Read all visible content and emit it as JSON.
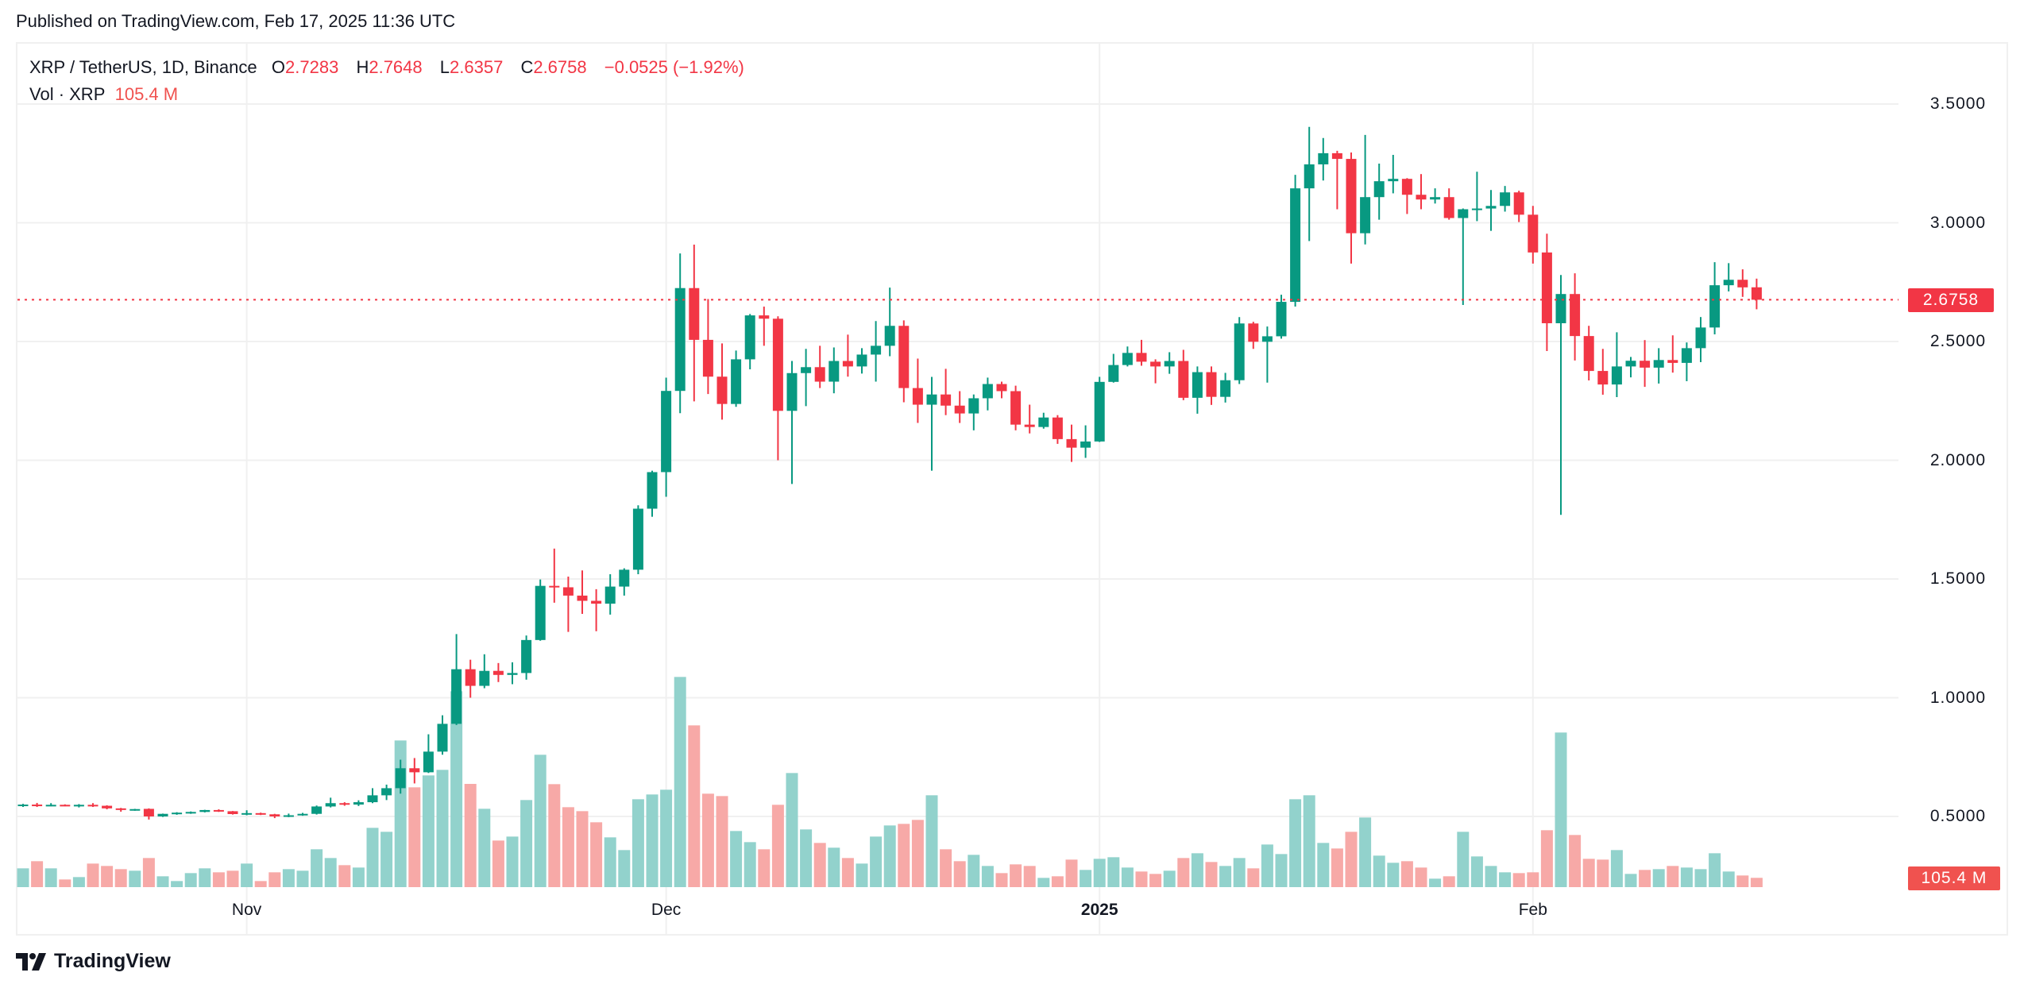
{
  "header": {
    "published": "Published on TradingView.com, Feb 17, 2025 11:36 UTC"
  },
  "legend": {
    "symbol": "XRP / TetherUS, 1D, Binance",
    "o_label": "O",
    "o": "2.7283",
    "h_label": "H",
    "h": "2.7648",
    "l_label": "L",
    "l": "2.6357",
    "c_label": "C",
    "c": "2.6758",
    "change": "−0.0525 (−1.92%)",
    "vol_label": "Vol · XRP",
    "vol": "105.4 M"
  },
  "price_tag": "2.6758",
  "vol_tag": "105.4 M",
  "footer": {
    "brand": "TradingView",
    "logo_icon": "tradingview-logo-icon"
  },
  "colors": {
    "up": "#089981",
    "down": "#f23645",
    "vol_up": "#92d2cc",
    "vol_down": "#f7a9a7",
    "last_price_line": "#f23645",
    "grid": "#f0f0f0"
  },
  "chart_data": {
    "type": "candlestick",
    "title": "XRP / TetherUS, 1D, Binance",
    "interval": "1D",
    "ylim": [
      0.38,
      3.67
    ],
    "yticks": [
      "3.5000",
      "3.0000",
      "2.5000",
      "2.0000",
      "1.5000",
      "1.0000",
      "0.5000"
    ],
    "ytick_values": [
      3.5,
      3.0,
      2.5,
      2.0,
      1.5,
      1.0,
      0.5
    ],
    "xticks": [
      {
        "label": "Nov",
        "date": "2024-11-01",
        "bold": false
      },
      {
        "label": "Dec",
        "date": "2024-12-01",
        "bold": false
      },
      {
        "label": "2025",
        "date": "2025-01-01",
        "bold": true
      },
      {
        "label": "Feb",
        "date": "2025-02-01",
        "bold": false
      }
    ],
    "grid": true,
    "last_price": 2.6758,
    "volume_unit": "M",
    "columns": [
      "date",
      "open",
      "high",
      "low",
      "close",
      "volume"
    ],
    "candles": [
      [
        "2024-10-16",
        0.547,
        0.553,
        0.54,
        0.55,
        213
      ],
      [
        "2024-10-17",
        0.55,
        0.557,
        0.54,
        0.547,
        294
      ],
      [
        "2024-10-18",
        0.547,
        0.556,
        0.543,
        0.549,
        213
      ],
      [
        "2024-10-19",
        0.549,
        0.551,
        0.543,
        0.546,
        87
      ],
      [
        "2024-10-20",
        0.546,
        0.552,
        0.538,
        0.549,
        114
      ],
      [
        "2024-10-21",
        0.549,
        0.556,
        0.54,
        0.545,
        267
      ],
      [
        "2024-10-22",
        0.545,
        0.547,
        0.53,
        0.534,
        240
      ],
      [
        "2024-10-23",
        0.534,
        0.536,
        0.52,
        0.528,
        204
      ],
      [
        "2024-10-24",
        0.528,
        0.532,
        0.524,
        0.531,
        186
      ],
      [
        "2024-10-25",
        0.532,
        0.534,
        0.487,
        0.5,
        330
      ],
      [
        "2024-10-26",
        0.5,
        0.512,
        0.498,
        0.511,
        123
      ],
      [
        "2024-10-27",
        0.511,
        0.518,
        0.507,
        0.516,
        69
      ],
      [
        "2024-10-28",
        0.516,
        0.521,
        0.511,
        0.519,
        159
      ],
      [
        "2024-10-29",
        0.519,
        0.528,
        0.517,
        0.527,
        213
      ],
      [
        "2024-10-30",
        0.527,
        0.53,
        0.519,
        0.522,
        168
      ],
      [
        "2024-10-31",
        0.522,
        0.523,
        0.508,
        0.51,
        186
      ],
      [
        "2024-11-01",
        0.51,
        0.526,
        0.505,
        0.514,
        267
      ],
      [
        "2024-11-02",
        0.514,
        0.516,
        0.506,
        0.509,
        69
      ],
      [
        "2024-11-03",
        0.509,
        0.511,
        0.493,
        0.5,
        168
      ],
      [
        "2024-11-04",
        0.5,
        0.512,
        0.497,
        0.505,
        204
      ],
      [
        "2024-11-05",
        0.505,
        0.515,
        0.503,
        0.511,
        186
      ],
      [
        "2024-11-06",
        0.511,
        0.546,
        0.508,
        0.542,
        429
      ],
      [
        "2024-11-07",
        0.542,
        0.579,
        0.538,
        0.556,
        330
      ],
      [
        "2024-11-08",
        0.556,
        0.56,
        0.545,
        0.55,
        249
      ],
      [
        "2024-11-09",
        0.55,
        0.568,
        0.544,
        0.56,
        222
      ],
      [
        "2024-11-10",
        0.56,
        0.619,
        0.556,
        0.589,
        672
      ],
      [
        "2024-11-11",
        0.589,
        0.634,
        0.569,
        0.619,
        627
      ],
      [
        "2024-11-12",
        0.619,
        0.739,
        0.596,
        0.703,
        1662
      ],
      [
        "2024-11-13",
        0.703,
        0.746,
        0.639,
        0.686,
        1131
      ],
      [
        "2024-11-14",
        0.686,
        0.846,
        0.683,
        0.773,
        1266
      ],
      [
        "2024-11-15",
        0.773,
        0.926,
        0.76,
        0.89,
        1329
      ],
      [
        "2024-11-16",
        0.89,
        1.268,
        0.885,
        1.12,
        2220
      ],
      [
        "2024-11-17",
        1.12,
        1.16,
        1.0,
        1.05,
        1170
      ],
      [
        "2024-11-18",
        1.05,
        1.183,
        1.04,
        1.113,
        888
      ],
      [
        "2024-11-19",
        1.113,
        1.146,
        1.066,
        1.096,
        528
      ],
      [
        "2024-11-20",
        1.096,
        1.149,
        1.057,
        1.104,
        573
      ],
      [
        "2024-11-21",
        1.104,
        1.262,
        1.076,
        1.243,
        987
      ],
      [
        "2024-11-22",
        1.243,
        1.498,
        1.24,
        1.471,
        1500
      ],
      [
        "2024-11-23",
        1.471,
        1.628,
        1.4,
        1.465,
        1167
      ],
      [
        "2024-11-24",
        1.465,
        1.51,
        1.277,
        1.43,
        906
      ],
      [
        "2024-11-25",
        1.43,
        1.536,
        1.353,
        1.408,
        861
      ],
      [
        "2024-11-26",
        1.408,
        1.457,
        1.28,
        1.396,
        735
      ],
      [
        "2024-11-27",
        1.396,
        1.52,
        1.35,
        1.468,
        564
      ],
      [
        "2024-11-28",
        1.468,
        1.545,
        1.43,
        1.539,
        420
      ],
      [
        "2024-11-29",
        1.539,
        1.81,
        1.52,
        1.796,
        996
      ],
      [
        "2024-11-30",
        1.796,
        1.956,
        1.762,
        1.95,
        1050
      ],
      [
        "2024-12-01",
        1.95,
        2.348,
        1.846,
        2.292,
        1104
      ],
      [
        "2024-12-02",
        2.292,
        2.871,
        2.198,
        2.725,
        2382
      ],
      [
        "2024-12-03",
        2.725,
        2.908,
        2.248,
        2.507,
        1833
      ],
      [
        "2024-12-04",
        2.507,
        2.679,
        2.279,
        2.352,
        1059
      ],
      [
        "2024-12-05",
        2.352,
        2.492,
        2.171,
        2.237,
        1032
      ],
      [
        "2024-12-06",
        2.237,
        2.462,
        2.225,
        2.425,
        636
      ],
      [
        "2024-12-07",
        2.425,
        2.616,
        2.383,
        2.61,
        510
      ],
      [
        "2024-12-08",
        2.61,
        2.647,
        2.482,
        2.596,
        429
      ],
      [
        "2024-12-09",
        2.596,
        2.606,
        2.0,
        2.208,
        933
      ],
      [
        "2024-12-10",
        2.208,
        2.418,
        1.9,
        2.367,
        1293
      ],
      [
        "2024-12-11",
        2.367,
        2.469,
        2.228,
        2.392,
        654
      ],
      [
        "2024-12-12",
        2.392,
        2.482,
        2.304,
        2.331,
        501
      ],
      [
        "2024-12-13",
        2.331,
        2.475,
        2.282,
        2.418,
        447
      ],
      [
        "2024-12-14",
        2.418,
        2.529,
        2.352,
        2.395,
        330
      ],
      [
        "2024-12-15",
        2.395,
        2.472,
        2.365,
        2.445,
        267
      ],
      [
        "2024-12-16",
        2.445,
        2.586,
        2.331,
        2.482,
        573
      ],
      [
        "2024-12-17",
        2.482,
        2.727,
        2.438,
        2.566,
        699
      ],
      [
        "2024-12-18",
        2.566,
        2.589,
        2.244,
        2.304,
        717
      ],
      [
        "2024-12-19",
        2.304,
        2.428,
        2.157,
        2.234,
        762
      ],
      [
        "2024-12-20",
        2.234,
        2.351,
        1.956,
        2.277,
        1041
      ],
      [
        "2024-12-21",
        2.277,
        2.385,
        2.19,
        2.23,
        429
      ],
      [
        "2024-12-22",
        2.23,
        2.291,
        2.157,
        2.197,
        294
      ],
      [
        "2024-12-23",
        2.197,
        2.277,
        2.126,
        2.261,
        366
      ],
      [
        "2024-12-24",
        2.261,
        2.348,
        2.21,
        2.321,
        240
      ],
      [
        "2024-12-25",
        2.321,
        2.331,
        2.261,
        2.291,
        159
      ],
      [
        "2024-12-26",
        2.291,
        2.314,
        2.126,
        2.15,
        258
      ],
      [
        "2024-12-27",
        2.15,
        2.234,
        2.113,
        2.14,
        240
      ],
      [
        "2024-12-28",
        2.14,
        2.2,
        2.133,
        2.18,
        105
      ],
      [
        "2024-12-29",
        2.18,
        2.19,
        2.069,
        2.089,
        123
      ],
      [
        "2024-12-30",
        2.089,
        2.15,
        1.993,
        2.053,
        312
      ],
      [
        "2024-12-31",
        2.053,
        2.147,
        2.01,
        2.079,
        195
      ],
      [
        "2025-01-01",
        2.079,
        2.351,
        2.077,
        2.33,
        321
      ],
      [
        "2025-01-02",
        2.33,
        2.448,
        2.327,
        2.401,
        339
      ],
      [
        "2025-01-03",
        2.401,
        2.479,
        2.395,
        2.452,
        222
      ],
      [
        "2025-01-04",
        2.452,
        2.507,
        2.398,
        2.415,
        177
      ],
      [
        "2025-01-05",
        2.415,
        2.425,
        2.324,
        2.395,
        150
      ],
      [
        "2025-01-06",
        2.395,
        2.455,
        2.364,
        2.418,
        186
      ],
      [
        "2025-01-07",
        2.418,
        2.465,
        2.253,
        2.263,
        330
      ],
      [
        "2025-01-08",
        2.263,
        2.395,
        2.196,
        2.371,
        384
      ],
      [
        "2025-01-09",
        2.371,
        2.395,
        2.233,
        2.267,
        285
      ],
      [
        "2025-01-10",
        2.267,
        2.368,
        2.243,
        2.337,
        240
      ],
      [
        "2025-01-11",
        2.337,
        2.603,
        2.321,
        2.576,
        330
      ],
      [
        "2025-01-12",
        2.576,
        2.583,
        2.469,
        2.499,
        213
      ],
      [
        "2025-01-13",
        2.499,
        2.563,
        2.327,
        2.522,
        483
      ],
      [
        "2025-01-14",
        2.522,
        2.697,
        2.512,
        2.667,
        375
      ],
      [
        "2025-01-15",
        2.667,
        3.202,
        2.647,
        3.145,
        996
      ],
      [
        "2025-01-16",
        3.145,
        3.404,
        2.923,
        3.246,
        1041
      ],
      [
        "2025-01-17",
        3.246,
        3.357,
        3.178,
        3.293,
        501
      ],
      [
        "2025-01-18",
        3.293,
        3.303,
        3.057,
        3.269,
        438
      ],
      [
        "2025-01-19",
        3.269,
        3.296,
        2.828,
        2.956,
        627
      ],
      [
        "2025-01-20",
        2.956,
        3.37,
        2.909,
        3.108,
        789
      ],
      [
        "2025-01-21",
        3.108,
        3.249,
        3.013,
        3.175,
        357
      ],
      [
        "2025-01-22",
        3.175,
        3.286,
        3.124,
        3.185,
        276
      ],
      [
        "2025-01-23",
        3.185,
        3.188,
        3.037,
        3.118,
        294
      ],
      [
        "2025-01-24",
        3.118,
        3.205,
        3.057,
        3.098,
        222
      ],
      [
        "2025-01-25",
        3.098,
        3.145,
        3.081,
        3.108,
        96
      ],
      [
        "2025-01-26",
        3.108,
        3.145,
        3.013,
        3.02,
        123
      ],
      [
        "2025-01-27",
        3.02,
        3.06,
        2.654,
        3.057,
        627
      ],
      [
        "2025-01-28",
        3.057,
        3.215,
        3.007,
        3.06,
        348
      ],
      [
        "2025-01-29",
        3.06,
        3.138,
        2.966,
        3.071,
        240
      ],
      [
        "2025-01-30",
        3.071,
        3.155,
        3.047,
        3.128,
        168
      ],
      [
        "2025-01-31",
        3.128,
        3.135,
        3.003,
        3.034,
        159
      ],
      [
        "2025-02-01",
        3.034,
        3.071,
        2.828,
        2.875,
        168
      ],
      [
        "2025-02-02",
        2.875,
        2.954,
        2.46,
        2.577,
        645
      ],
      [
        "2025-02-03",
        2.577,
        2.78,
        1.77,
        2.7,
        1752
      ],
      [
        "2025-02-04",
        2.7,
        2.787,
        2.42,
        2.523,
        591
      ],
      [
        "2025-02-05",
        2.523,
        2.566,
        2.336,
        2.376,
        321
      ],
      [
        "2025-02-06",
        2.376,
        2.469,
        2.276,
        2.319,
        312
      ],
      [
        "2025-02-07",
        2.319,
        2.539,
        2.266,
        2.395,
        420
      ],
      [
        "2025-02-08",
        2.395,
        2.435,
        2.349,
        2.419,
        150
      ],
      [
        "2025-02-09",
        2.419,
        2.506,
        2.309,
        2.39,
        195
      ],
      [
        "2025-02-10",
        2.39,
        2.472,
        2.323,
        2.422,
        204
      ],
      [
        "2025-02-11",
        2.422,
        2.526,
        2.369,
        2.41,
        240
      ],
      [
        "2025-02-12",
        2.41,
        2.496,
        2.333,
        2.472,
        222
      ],
      [
        "2025-02-13",
        2.472,
        2.603,
        2.413,
        2.559,
        204
      ],
      [
        "2025-02-14",
        2.559,
        2.834,
        2.53,
        2.737,
        384
      ],
      [
        "2025-02-15",
        2.737,
        2.83,
        2.711,
        2.76,
        177
      ],
      [
        "2025-02-16",
        2.76,
        2.804,
        2.688,
        2.728,
        132
      ],
      [
        "2025-02-17",
        2.7283,
        2.7648,
        2.6357,
        2.6758,
        105.4
      ]
    ]
  }
}
